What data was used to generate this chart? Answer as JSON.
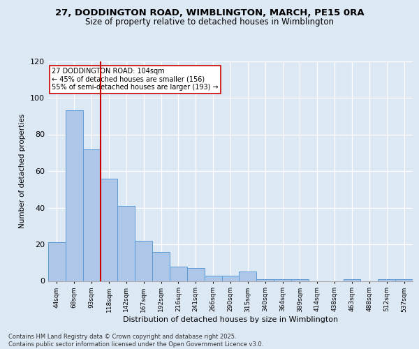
{
  "title_line1": "27, DODDINGTON ROAD, WIMBLINGTON, MARCH, PE15 0RA",
  "title_line2": "Size of property relative to detached houses in Wimblington",
  "xlabel": "Distribution of detached houses by size in Wimblington",
  "ylabel": "Number of detached properties",
  "categories": [
    "44sqm",
    "68sqm",
    "93sqm",
    "118sqm",
    "142sqm",
    "167sqm",
    "192sqm",
    "216sqm",
    "241sqm",
    "266sqm",
    "290sqm",
    "315sqm",
    "340sqm",
    "364sqm",
    "389sqm",
    "414sqm",
    "438sqm",
    "463sqm",
    "488sqm",
    "512sqm",
    "537sqm"
  ],
  "values": [
    21,
    93,
    72,
    56,
    41,
    22,
    16,
    8,
    7,
    3,
    3,
    5,
    1,
    1,
    1,
    0,
    0,
    1,
    0,
    1,
    1
  ],
  "bar_color": "#aec6e8",
  "bar_edge_color": "#5b9bd5",
  "vline_x": 2.5,
  "vline_color": "#cc0000",
  "annotation_text": "27 DODDINGTON ROAD: 104sqm\n← 45% of detached houses are smaller (156)\n55% of semi-detached houses are larger (193) →",
  "annotation_box_color": "#ffffff",
  "annotation_box_edge": "#cc0000",
  "ylim": [
    0,
    120
  ],
  "yticks": [
    0,
    20,
    40,
    60,
    80,
    100,
    120
  ],
  "background_color": "#dde8f5",
  "grid_color": "#ffffff",
  "footer": "Contains HM Land Registry data © Crown copyright and database right 2025.\nContains public sector information licensed under the Open Government Licence v3.0."
}
